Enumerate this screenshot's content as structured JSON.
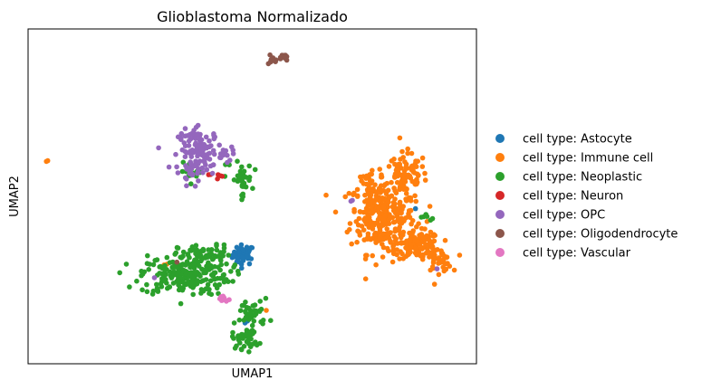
{
  "chart_data": {
    "type": "scatter",
    "title": "Glioblastoma Normalizado",
    "xlabel": "UMAP1",
    "ylabel": "UMAP2",
    "xlim": [
      0,
      100
    ],
    "ylim": [
      0,
      100
    ],
    "ticks": "none",
    "grid": false,
    "legend_placement": "right-outside",
    "series": [
      {
        "name": "cell type: Astocyte",
        "color": "#1f77b4",
        "clusters": [
          {
            "cx": 48.0,
            "cy": 32.5,
            "sx": 1.2,
            "sy": 1.5,
            "n": 45
          },
          {
            "cx": 49.0,
            "cy": 12.5,
            "sx": 0.4,
            "sy": 0.4,
            "n": 2
          },
          {
            "cx": 86.5,
            "cy": 46.0,
            "sx": 0.3,
            "sy": 0.3,
            "n": 1
          }
        ]
      },
      {
        "name": "cell type: Immune cell",
        "color": "#ff7f0e",
        "clusters": [
          {
            "cx": 79.0,
            "cy": 44.0,
            "sx": 3.6,
            "sy": 5.5,
            "n": 260
          },
          {
            "cx": 84.0,
            "cy": 56.0,
            "sx": 2.5,
            "sy": 3.5,
            "n": 90
          },
          {
            "cx": 87.0,
            "cy": 35.5,
            "sx": 2.5,
            "sy": 2.0,
            "n": 120
          },
          {
            "cx": 91.5,
            "cy": 31.0,
            "sx": 1.5,
            "sy": 1.8,
            "n": 40
          },
          {
            "cx": 76.0,
            "cy": 50.0,
            "sx": 1.2,
            "sy": 4.0,
            "n": 40
          },
          {
            "cx": 4.5,
            "cy": 60.5,
            "sx": 0.2,
            "sy": 0.2,
            "n": 2
          },
          {
            "cx": 30.5,
            "cy": 29.5,
            "sx": 0.3,
            "sy": 0.3,
            "n": 2
          },
          {
            "cx": 53.0,
            "cy": 16.0,
            "sx": 0.2,
            "sy": 0.2,
            "n": 1
          }
        ]
      },
      {
        "name": "cell type: Neoplastic",
        "color": "#2ca02c",
        "clusters": [
          {
            "cx": 35.0,
            "cy": 26.5,
            "sx": 5.0,
            "sy": 3.0,
            "n": 220
          },
          {
            "cx": 39.5,
            "cy": 32.5,
            "sx": 3.0,
            "sy": 1.5,
            "n": 60
          },
          {
            "cx": 50.0,
            "cy": 15.0,
            "sx": 1.8,
            "sy": 2.2,
            "n": 40
          },
          {
            "cx": 48.5,
            "cy": 7.5,
            "sx": 1.5,
            "sy": 1.5,
            "n": 40
          },
          {
            "cx": 47.5,
            "cy": 55.0,
            "sx": 1.2,
            "sy": 2.5,
            "n": 35
          },
          {
            "cx": 37.0,
            "cy": 57.5,
            "sx": 1.5,
            "sy": 1.2,
            "n": 15
          },
          {
            "cx": 88.5,
            "cy": 43.0,
            "sx": 1.0,
            "sy": 1.0,
            "n": 6
          },
          {
            "cx": 44.0,
            "cy": 60.0,
            "sx": 0.5,
            "sy": 0.5,
            "n": 3
          }
        ]
      },
      {
        "name": "cell type: Neuron",
        "color": "#d62728",
        "clusters": [
          {
            "cx": 42.5,
            "cy": 56.0,
            "sx": 0.5,
            "sy": 0.3,
            "n": 4
          },
          {
            "cx": 40.5,
            "cy": 56.5,
            "sx": 0.3,
            "sy": 0.2,
            "n": 2
          }
        ]
      },
      {
        "name": "cell type: OPC",
        "color": "#9467bd",
        "clusters": [
          {
            "cx": 38.5,
            "cy": 64.0,
            "sx": 2.5,
            "sy": 3.0,
            "n": 110
          },
          {
            "cx": 37.0,
            "cy": 57.5,
            "sx": 1.5,
            "sy": 2.0,
            "n": 30
          },
          {
            "cx": 44.5,
            "cy": 63.0,
            "sx": 0.8,
            "sy": 1.2,
            "n": 8
          },
          {
            "cx": 72.0,
            "cy": 49.0,
            "sx": 0.3,
            "sy": 0.3,
            "n": 2
          },
          {
            "cx": 91.0,
            "cy": 28.0,
            "sx": 0.3,
            "sy": 0.3,
            "n": 1
          },
          {
            "cx": 28.5,
            "cy": 26.0,
            "sx": 0.3,
            "sy": 0.3,
            "n": 1
          }
        ]
      },
      {
        "name": "cell type: Oligodendrocyte",
        "color": "#8c564b",
        "clusters": [
          {
            "cx": 56.5,
            "cy": 91.5,
            "sx": 0.6,
            "sy": 0.6,
            "n": 12
          },
          {
            "cx": 54.5,
            "cy": 90.0,
            "sx": 0.5,
            "sy": 1.0,
            "n": 8
          },
          {
            "cx": 33.5,
            "cy": 30.5,
            "sx": 0.2,
            "sy": 0.2,
            "n": 1
          }
        ]
      },
      {
        "name": "cell type: Vascular",
        "color": "#e377c2",
        "clusters": [
          {
            "cx": 43.5,
            "cy": 19.5,
            "sx": 0.5,
            "sy": 0.5,
            "n": 14
          }
        ]
      }
    ]
  }
}
